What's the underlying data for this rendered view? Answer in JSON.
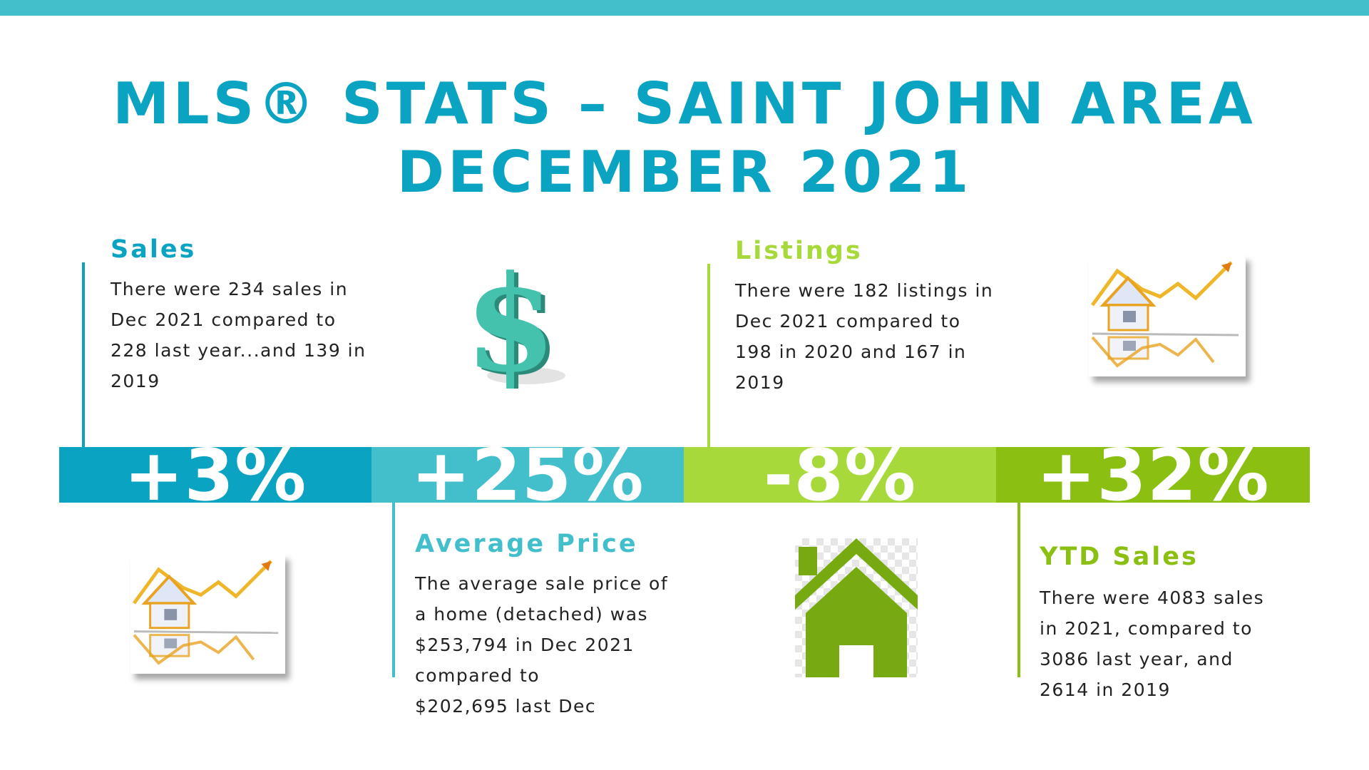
{
  "title": {
    "line1": "MLS® STATS – SAINT JOHN AREA",
    "line2": "DECEMBER  2021"
  },
  "colors": {
    "top_bar": "#43bfcc",
    "title": "#0aa3c2",
    "sales": "#0aa3c2",
    "avg_price": "#43bfcc",
    "listings": "#a7d93a",
    "ytd": "#8bbf12",
    "house_icon": "#76aa10",
    "dollar": "#3fbfa8"
  },
  "sales": {
    "heading": "Sales",
    "lines": [
      "There were 234 sales in",
      "Dec 2021 compared to",
      "228 last year...and 139 in",
      "2019"
    ],
    "percent": "+3%"
  },
  "avg_price": {
    "heading": "Average Price",
    "lines": [
      "The average sale price of",
      "a home (detached) was",
      "$253,794 in Dec 2021",
      "compared to",
      "$202,695 last Dec"
    ],
    "percent": "+25%"
  },
  "listings": {
    "heading": "Listings",
    "lines": [
      "There were 182 listings in",
      "Dec 2021 compared to",
      "198 in 2020 and 167 in",
      "2019"
    ],
    "percent": "-8%"
  },
  "ytd": {
    "heading": "YTD Sales",
    "lines": [
      "There were 4083 sales",
      "in 2021,  compared to",
      "3086 last year, and",
      "2614 in 2019"
    ],
    "percent": "+32%"
  },
  "icons": {
    "dollar": "dollar-sign-icon",
    "house_chart": "house-chart-icon",
    "house": "house-icon"
  }
}
